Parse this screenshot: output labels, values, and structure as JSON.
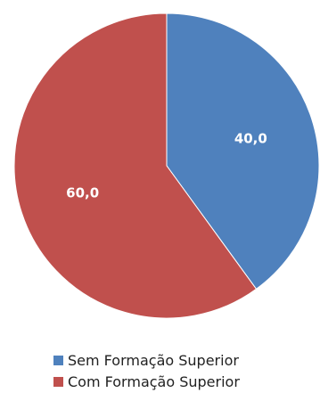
{
  "chart_data": {
    "type": "pie",
    "categories": [
      "Sem Formação Superior",
      "Com Formação Superior"
    ],
    "values": [
      40.0,
      60.0
    ],
    "data_labels": [
      "40,0",
      "60,0"
    ],
    "colors": [
      "#4F81BD",
      "#C0504D"
    ],
    "label_color": "#ffffff",
    "start_angle_deg": 0,
    "direction": "clockwise",
    "legend_position": "bottom"
  }
}
